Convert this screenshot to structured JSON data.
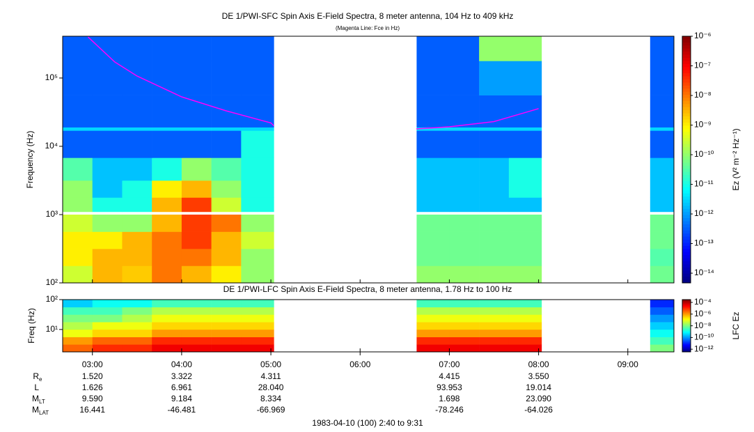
{
  "chart_data": [
    {
      "type": "heatmap",
      "title": "DE 1/PWI-SFC  Spin Axis E-Field Spectra, 8 meter antenna, 104 Hz to 409 kHz",
      "subtitle": "(Magenta Line: Fce in Hz)",
      "ylabel": "Frequency (Hz)",
      "xlim": [
        2.6667,
        9.5167
      ],
      "ylim": [
        100,
        409000
      ],
      "yscale": "log",
      "yticks": [
        {
          "value": 100,
          "label": "10²"
        },
        {
          "value": 1000,
          "label": "10³"
        },
        {
          "value": 10000,
          "label": "10⁴"
        },
        {
          "value": 100000,
          "label": "10⁵"
        }
      ],
      "xbins": [
        2.6667,
        3,
        3.3333,
        3.6667,
        4,
        4.3333,
        4.6667,
        5.0333,
        6.6333,
        7,
        7.3333,
        7.6667,
        8.0333,
        9.25,
        9.5167
      ],
      "ybins": [
        100,
        178,
        316,
        562,
        1000,
        1100,
        1780,
        3160,
        6800,
        17000,
        19000,
        56000,
        178000,
        409000
      ],
      "values": [
        [
          3e-10,
          3e-09,
          2e-09,
          1e-08,
          3e-09,
          1e-09,
          1e-10,
          null,
          1e-10,
          1e-10,
          1e-10,
          1e-10,
          null,
          5e-11
        ],
        [
          1e-09,
          3e-09,
          3e-09,
          1e-08,
          1e-08,
          3e-09,
          1e-10,
          null,
          5e-11,
          5e-11,
          5e-11,
          5e-11,
          null,
          3e-11
        ],
        [
          1e-09,
          1e-09,
          3e-09,
          1e-08,
          3e-08,
          3e-09,
          3e-10,
          null,
          5e-11,
          5e-11,
          5e-11,
          5e-11,
          null,
          5e-11
        ],
        [
          3e-10,
          1e-10,
          1e-10,
          3e-09,
          3e-08,
          1e-08,
          1e-10,
          null,
          5e-11,
          5e-11,
          5e-11,
          5e-11,
          null,
          5e-11
        ],
        [
          null,
          null,
          null,
          null,
          null,
          null,
          null,
          null,
          null,
          null,
          null,
          null,
          null,
          null
        ],
        [
          1e-10,
          1e-11,
          1e-11,
          3e-09,
          3e-08,
          3e-10,
          1e-11,
          null,
          2e-12,
          2e-12,
          2e-12,
          2e-12,
          null,
          2e-12
        ],
        [
          1e-10,
          2e-12,
          1e-11,
          1e-09,
          3e-09,
          1e-10,
          1e-11,
          null,
          2e-12,
          2e-12,
          2e-12,
          1e-11,
          null,
          2e-12
        ],
        [
          3e-11,
          2e-12,
          2e-12,
          1e-11,
          1e-10,
          3e-11,
          1e-11,
          null,
          2e-12,
          2e-12,
          2e-12,
          1e-11,
          null,
          2e-12
        ],
        [
          3e-13,
          3e-13,
          3e-13,
          3e-13,
          3e-13,
          3e-13,
          1e-11,
          null,
          3e-13,
          3e-13,
          3e-13,
          3e-13,
          null,
          3e-13
        ],
        [
          3e-12,
          3e-12,
          3e-12,
          3e-12,
          3e-12,
          3e-12,
          3e-12,
          null,
          3e-12,
          3e-12,
          3e-12,
          3e-12,
          null,
          3e-12
        ],
        [
          3e-13,
          3e-13,
          3e-13,
          3e-13,
          3e-13,
          3e-13,
          3e-13,
          null,
          3e-13,
          3e-13,
          3e-13,
          3e-13,
          null,
          3e-13
        ],
        [
          3e-13,
          3e-13,
          3e-13,
          3e-13,
          3e-13,
          3e-13,
          3e-13,
          null,
          3e-13,
          3e-13,
          1e-12,
          1e-12,
          null,
          3e-13
        ],
        [
          3e-13,
          3e-13,
          3e-13,
          3e-13,
          3e-13,
          3e-13,
          3e-13,
          null,
          3e-13,
          3e-13,
          1e-10,
          1e-10,
          null,
          3e-13
        ]
      ],
      "colorscale": "jet",
      "zscale": "log",
      "zlim": [
        4.7e-15,
        1e-06
      ],
      "zticks": [
        {
          "value": 1e-06,
          "label": "10⁻⁶"
        },
        {
          "value": 1e-07,
          "label": "10⁻⁷"
        },
        {
          "value": 1e-08,
          "label": "10⁻⁸"
        },
        {
          "value": 1e-09,
          "label": "10⁻⁹"
        },
        {
          "value": 1e-10,
          "label": "10⁻¹⁰"
        },
        {
          "value": 1e-11,
          "label": "10⁻¹¹"
        },
        {
          "value": 1e-12,
          "label": "10⁻¹²"
        },
        {
          "value": 1e-13,
          "label": "10⁻¹³"
        },
        {
          "value": 1e-14,
          "label": "10⁻¹⁴"
        }
      ],
      "zlabel": "Ez (V² m⁻² Hz⁻¹)",
      "series": [
        {
          "type": "line",
          "color": "#ff00ff",
          "x": [
            2.95,
            3.25,
            3.5,
            4.0,
            4.5,
            5.0,
            5.0333,
            null,
            6.63,
            7.0,
            7.5,
            8.0
          ],
          "values": [
            400000,
            172000,
            107000,
            53000,
            33000,
            22000,
            20000,
            null,
            18000,
            19300,
            23000,
            35600
          ]
        }
      ]
    },
    {
      "type": "heatmap",
      "title": "DE 1/PWI-LFC  Spin Axis E-Field Spectra, 8 meter antenna, 1.78 Hz to 100 Hz",
      "ylabel": "Freq (Hz)",
      "xlim": [
        2.6667,
        9.5167
      ],
      "xticks": [
        {
          "value": 3,
          "label": "03:00"
        },
        {
          "value": 4,
          "label": "04:00"
        },
        {
          "value": 5,
          "label": "05:00"
        },
        {
          "value": 6,
          "label": "06:00"
        },
        {
          "value": 7,
          "label": "07:00"
        },
        {
          "value": 8,
          "label": "08:00"
        },
        {
          "value": 9,
          "label": "09:00"
        }
      ],
      "ylim": [
        1.78,
        100
      ],
      "yscale": "log",
      "yticks": [
        {
          "value": 10,
          "label": "10¹"
        },
        {
          "value": 100,
          "label": "10²"
        }
      ],
      "xbins": [
        2.6667,
        3,
        3.3333,
        3.6667,
        4,
        4.3333,
        4.6667,
        5.0333,
        6.6333,
        7,
        7.3333,
        7.6667,
        8.0333,
        9.25,
        9.5167
      ],
      "ybins": [
        1.78,
        3.16,
        5.6,
        10,
        17.8,
        31.6,
        56,
        100
      ],
      "values": [
        [
          3e-06,
          1e-05,
          1e-05,
          3e-05,
          3e-05,
          3e-05,
          3e-05,
          null,
          3e-05,
          3e-05,
          3e-05,
          3e-05,
          null,
          1e-08
        ],
        [
          1e-06,
          3e-06,
          3e-06,
          1e-05,
          1e-05,
          1e-05,
          1e-05,
          null,
          1e-05,
          1e-05,
          1e-05,
          1e-05,
          null,
          3e-09
        ],
        [
          1e-07,
          3e-07,
          3e-07,
          1e-06,
          1e-06,
          1e-06,
          1e-06,
          null,
          1e-06,
          1e-06,
          1e-06,
          1e-06,
          null,
          1e-09
        ],
        [
          3e-08,
          1e-07,
          1e-07,
          3e-07,
          3e-07,
          3e-07,
          3e-07,
          null,
          3e-07,
          3e-07,
          3e-07,
          3e-07,
          null,
          3e-10
        ],
        [
          1e-08,
          1e-08,
          3e-08,
          1e-07,
          1e-07,
          1e-07,
          1e-07,
          null,
          1e-07,
          1e-07,
          1e-07,
          1e-07,
          null,
          1e-10
        ],
        [
          3e-09,
          3e-09,
          1e-08,
          3e-08,
          3e-08,
          3e-08,
          3e-08,
          null,
          3e-08,
          3e-08,
          3e-08,
          3e-08,
          null,
          3e-11
        ],
        [
          3e-10,
          1e-09,
          1e-09,
          3e-09,
          3e-09,
          3e-09,
          3e-09,
          null,
          3e-09,
          3e-09,
          3e-09,
          3e-09,
          null,
          1e-11
        ]
      ],
      "colorscale": "jet",
      "zscale": "log",
      "zlim": [
        3.5e-13,
        0.0003
      ],
      "zticks": [
        {
          "value": 0.0001,
          "label": "10⁻⁴"
        },
        {
          "value": 1e-06,
          "label": "10⁻⁶"
        },
        {
          "value": 1e-08,
          "label": "10⁻⁸"
        },
        {
          "value": 1e-10,
          "label": "10⁻¹⁰"
        },
        {
          "value": 1e-12,
          "label": "10⁻¹²"
        }
      ],
      "zlabel": "LFC Ez"
    }
  ],
  "ephemeris": {
    "rows": [
      {
        "label": "R",
        "subscript": "e",
        "values": [
          "1.520",
          "3.322",
          "4.311",
          null,
          "4.415",
          "3.550",
          null
        ]
      },
      {
        "label": "L",
        "values": [
          "1.626",
          "6.961",
          "28.040",
          null,
          "93.953",
          "19.014",
          null
        ]
      },
      {
        "label": "M",
        "subscript": "LT",
        "values": [
          "9.590",
          "9.184",
          "8.334",
          null,
          "1.698",
          "23.090",
          null
        ]
      },
      {
        "label": "M",
        "subscript": "LAT",
        "values": [
          "16.441",
          "-46.481",
          "-66.969",
          null,
          "-78.246",
          "-64.026",
          null
        ]
      }
    ]
  },
  "caption": "1983-04-10 (100) 2:40 to 9:31"
}
